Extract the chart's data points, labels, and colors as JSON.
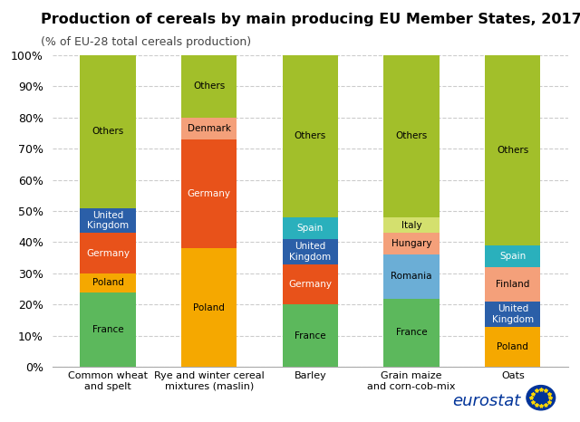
{
  "title": "Production of cereals by main producing EU Member States, 2017",
  "subtitle": "(% of EU-28 total cereals production)",
  "categories": [
    "Common wheat\nand spelt",
    "Rye and winter cereal\nmixtures (maslin)",
    "Barley",
    "Grain maize\nand corn-cob-mix",
    "Oats"
  ],
  "segments": [
    {
      "label": "France",
      "color": "#5cb85c",
      "values": [
        24,
        0,
        20,
        22,
        0
      ]
    },
    {
      "label": "Poland",
      "color": "#f5a800",
      "values": [
        6,
        38,
        0,
        0,
        13
      ]
    },
    {
      "label": "Germany",
      "color": "#e8521a",
      "values": [
        13,
        35,
        13,
        0,
        0
      ]
    },
    {
      "label": "United\nKingdom",
      "color": "#2b5fa8",
      "values": [
        8,
        0,
        8,
        0,
        8
      ]
    },
    {
      "label": "Romania",
      "color": "#6baed6",
      "values": [
        0,
        0,
        0,
        14,
        0
      ]
    },
    {
      "label": "Finland",
      "color": "#f4a07a",
      "values": [
        0,
        0,
        0,
        0,
        11
      ]
    },
    {
      "label": "Denmark",
      "color": "#f4a07a",
      "values": [
        0,
        7,
        0,
        0,
        0
      ]
    },
    {
      "label": "Spain",
      "color": "#2ab0bc",
      "values": [
        0,
        0,
        7,
        0,
        7
      ]
    },
    {
      "label": "Hungary",
      "color": "#f4a07a",
      "values": [
        0,
        0,
        0,
        7,
        0
      ]
    },
    {
      "label": "Italy",
      "color": "#d4e06e",
      "values": [
        0,
        0,
        0,
        5,
        0
      ]
    },
    {
      "label": "Others",
      "color": "#a2bf2a",
      "values": [
        49,
        20,
        52,
        52,
        61
      ]
    }
  ],
  "white_text_colors": [
    "#e8521a",
    "#2b5fa8",
    "#2ab0bc"
  ],
  "background_color": "#ffffff",
  "ylim": [
    0,
    100
  ],
  "yticks": [
    0,
    10,
    20,
    30,
    40,
    50,
    60,
    70,
    80,
    90,
    100
  ],
  "ytick_labels": [
    "0%",
    "10%",
    "20%",
    "30%",
    "40%",
    "50%",
    "60%",
    "70%",
    "80%",
    "90%",
    "100%"
  ],
  "bar_width": 0.55
}
